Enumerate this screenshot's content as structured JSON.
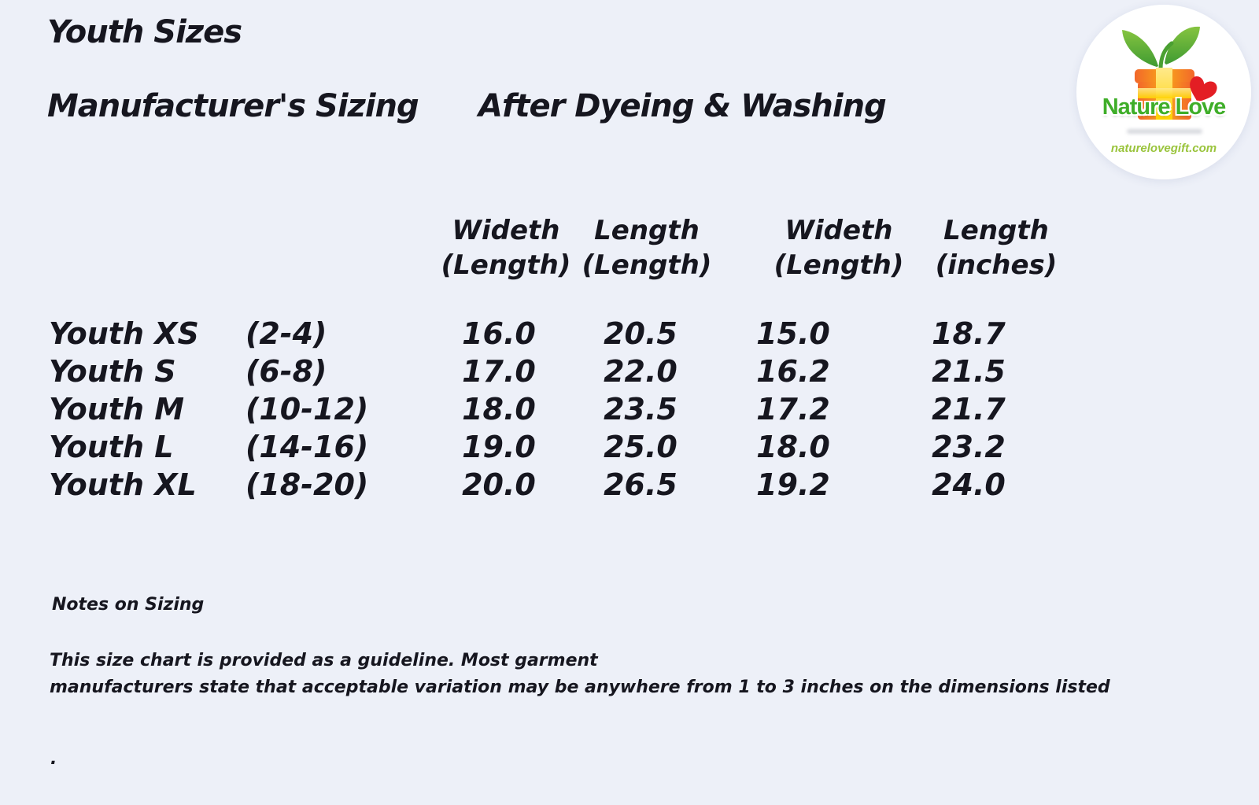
{
  "page": {
    "background_color": "#edf0f8",
    "text_color": "#16161f"
  },
  "header": {
    "title": "Youth Sizes",
    "group_left": "Manufacturer's Sizing",
    "group_right": "After Dyeing & Washing"
  },
  "logo": {
    "brand": "Nature Love",
    "website": "naturelovegift.com",
    "brand_color": "#3fae29",
    "website_color": "#9ac43c",
    "gift_icon": "gift-box-with-leaves-and-heart",
    "colors": {
      "box_orange": "#f2672a",
      "box_light_orange": "#f9a61a",
      "ribbon_yellow": "#ffd200",
      "ribbon_light_yellow": "#ffe98c",
      "leaf_green": "#86c440",
      "leaf_dark_green": "#3f9b32",
      "heart_red": "#e31e24"
    }
  },
  "table": {
    "columns": [
      {
        "line1": "Wideth",
        "line2": "(Length)"
      },
      {
        "line1": "Length",
        "line2": "(Length)"
      },
      {
        "line1": "Wideth",
        "line2": "(Length)"
      },
      {
        "line1": "Length",
        "line2": "(inches)"
      }
    ],
    "rows": [
      {
        "size": "Youth XS",
        "range": "(2-4)",
        "values": [
          "16.0",
          "20.5",
          "15.0",
          "18.7"
        ]
      },
      {
        "size": "Youth S",
        "range": "(6-8)",
        "values": [
          "17.0",
          "22.0",
          "16.2",
          "21.5"
        ]
      },
      {
        "size": "Youth M",
        "range": "(10-12)",
        "values": [
          "18.0",
          "23.5",
          "17.2",
          "21.7"
        ]
      },
      {
        "size": "Youth L",
        "range": "(14-16)",
        "values": [
          "19.0",
          "25.0",
          "18.0",
          "23.2"
        ]
      },
      {
        "size": "Youth XL",
        "range": "(18-20)",
        "values": [
          "20.0",
          "26.5",
          "19.2",
          "24.0"
        ]
      }
    ]
  },
  "notes": {
    "heading": "Notes on Sizing",
    "body_line1": "This size chart is provided as a guideline. Most garment",
    "body_line2": "manufacturers state that acceptable variation may be anywhere from 1 to 3 inches on the dimensions listed",
    "footer_mark": "."
  }
}
